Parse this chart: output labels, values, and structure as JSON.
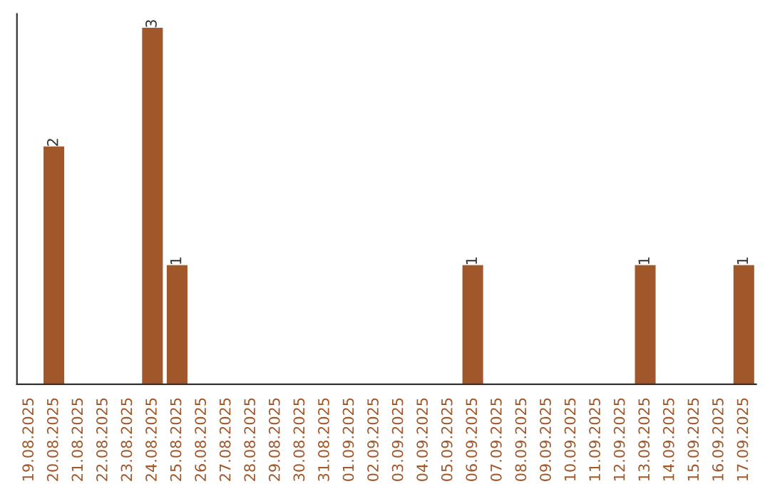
{
  "chart_data": {
    "type": "bar",
    "categories": [
      "19.08.2025",
      "20.08.2025",
      "21.08.2025",
      "22.08.2025",
      "23.08.2025",
      "24.08.2025",
      "25.08.2025",
      "26.08.2025",
      "27.08.2025",
      "28.08.2025",
      "29.08.2025",
      "30.08.2025",
      "31.08.2025",
      "01.09.2025",
      "02.09.2025",
      "03.09.2025",
      "04.09.2025",
      "05.09.2025",
      "06.09.2025",
      "07.09.2025",
      "08.09.2025",
      "09.09.2025",
      "10.09.2025",
      "11.09.2025",
      "12.09.2025",
      "13.09.2025",
      "14.09.2025",
      "15.09.2025",
      "16.09.2025",
      "17.09.2025"
    ],
    "values": [
      0,
      2,
      0,
      0,
      0,
      3,
      1,
      0,
      0,
      0,
      0,
      0,
      0,
      0,
      0,
      0,
      0,
      0,
      1,
      0,
      0,
      0,
      0,
      0,
      0,
      1,
      0,
      0,
      0,
      1
    ],
    "value_labels": [
      null,
      "2",
      null,
      null,
      null,
      "3",
      "1",
      null,
      null,
      null,
      null,
      null,
      null,
      null,
      null,
      null,
      null,
      null,
      "1",
      null,
      null,
      null,
      null,
      null,
      null,
      "1",
      null,
      null,
      null,
      "1"
    ],
    "color": "#a0572a",
    "tick_labels": "x",
    "grid": false,
    "legend": false
  }
}
